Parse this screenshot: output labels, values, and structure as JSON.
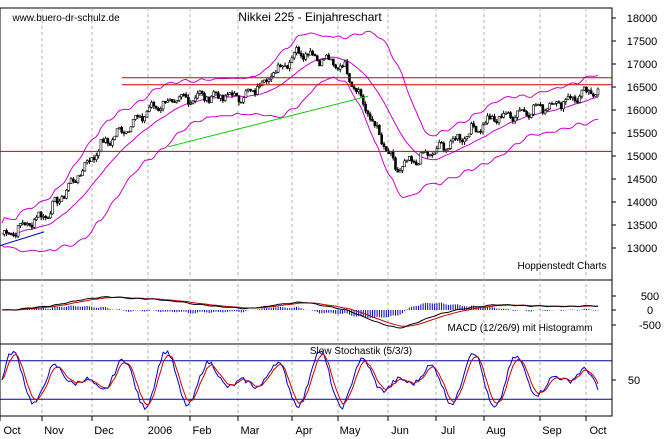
{
  "chart_data": [
    {
      "panel": "price",
      "type": "candlestick",
      "title": "Nikkei 225 - Einjahreschart",
      "watermark": "www.buero-dr-schulz.de",
      "source_note": "Hoppenstedt Charts",
      "y_axis": {
        "position": "right",
        "range": [
          12500,
          18200
        ],
        "ticks": [
          13000,
          13500,
          14000,
          14500,
          15000,
          15500,
          16000,
          16500,
          17000,
          17500,
          18000
        ]
      },
      "x_axis": {
        "labels": [
          "Oct",
          "Nov",
          "Dec",
          "2006",
          "Feb",
          "Mar",
          "Apr",
          "May",
          "Jun",
          "Jul",
          "Aug",
          "Sep",
          "Oct"
        ]
      },
      "close_series_approx": [
        {
          "x": "Oct",
          "y": 13300
        },
        {
          "x": "Nov",
          "y": 13800
        },
        {
          "x": "Dec",
          "y": 15200
        },
        {
          "x": "2006",
          "y": 16100
        },
        {
          "x": "Feb",
          "y": 16300
        },
        {
          "x": "Mar",
          "y": 16300
        },
        {
          "x": "Apr",
          "y": 17300
        },
        {
          "x": "May",
          "y": 16900
        },
        {
          "x": "Jun",
          "y": 14700
        },
        {
          "x": "Jul",
          "y": 15200
        },
        {
          "x": "Aug",
          "y": 15800
        },
        {
          "x": "Sep",
          "y": 16100
        },
        {
          "x": "Oct",
          "y": 16400
        }
      ],
      "horizontal_lines": [
        16700,
        16550,
        15100
      ],
      "trendline": {
        "from": {
          "x": "2006",
          "y": 15200
        },
        "to": {
          "x": "May",
          "y": 16300
        }
      },
      "colors": {
        "bollinger": "#d000d0",
        "levels": "#cc0000",
        "trend": "#00cc00",
        "candles": "#000000"
      }
    },
    {
      "panel": "macd",
      "type": "line+histogram",
      "label": "MACD (12/26/9) mit Histogramm",
      "y_axis": {
        "ticks": [
          "500",
          "0",
          "-500"
        ]
      },
      "colors": {
        "macd": "#000000",
        "signal": "#cc0000",
        "histogram": "#0000cc"
      }
    },
    {
      "panel": "stochastic",
      "type": "line",
      "label": "Slow Stochastik (5/3/3)",
      "y_axis": {
        "range": [
          0,
          100
        ],
        "ticks": [
          "50"
        ]
      },
      "levels": [
        80,
        20
      ],
      "colors": {
        "k": "#0000cc",
        "d": "#cc0000",
        "levels": "#0000aa"
      }
    }
  ]
}
